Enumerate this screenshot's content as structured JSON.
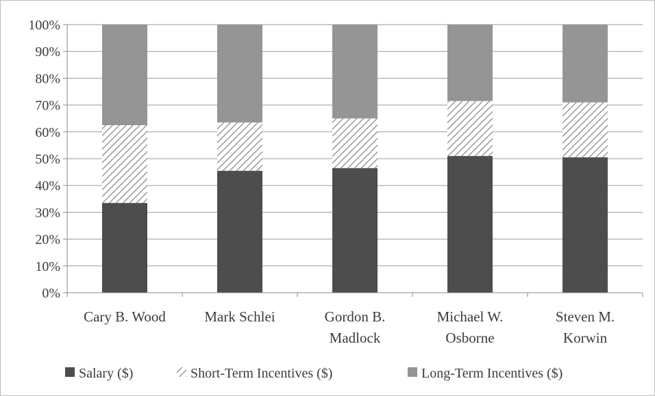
{
  "chart_data": {
    "type": "bar",
    "stacked": true,
    "percent": true,
    "title": "",
    "xlabel": "",
    "ylabel": "",
    "ylim": [
      0,
      100
    ],
    "yticks": [
      "0%",
      "10%",
      "20%",
      "30%",
      "40%",
      "50%",
      "60%",
      "70%",
      "80%",
      "90%",
      "100%"
    ],
    "categories": [
      [
        "Cary B. Wood"
      ],
      [
        "Mark Schlei"
      ],
      [
        "Gordon B.",
        "Madlock"
      ],
      [
        "Michael W.",
        "Osborne"
      ],
      [
        "Steven M.",
        "Korwin"
      ]
    ],
    "series": [
      {
        "name": "Salary ($)",
        "values": [
          33.5,
          45.5,
          46.5,
          51,
          50.5
        ],
        "color": "#4d4d4d",
        "pattern": "solid"
      },
      {
        "name": "Short-Term Incentives ($)",
        "values": [
          29,
          18,
          18.5,
          20.5,
          20.5
        ],
        "color": "#8a8a8a",
        "pattern": "hatch"
      },
      {
        "name": "Long-Term Incentives ($)",
        "values": [
          37.5,
          36.5,
          35,
          28.5,
          29
        ],
        "color": "#959595",
        "pattern": "solid"
      }
    ],
    "grid": true,
    "legend_position": "bottom"
  }
}
